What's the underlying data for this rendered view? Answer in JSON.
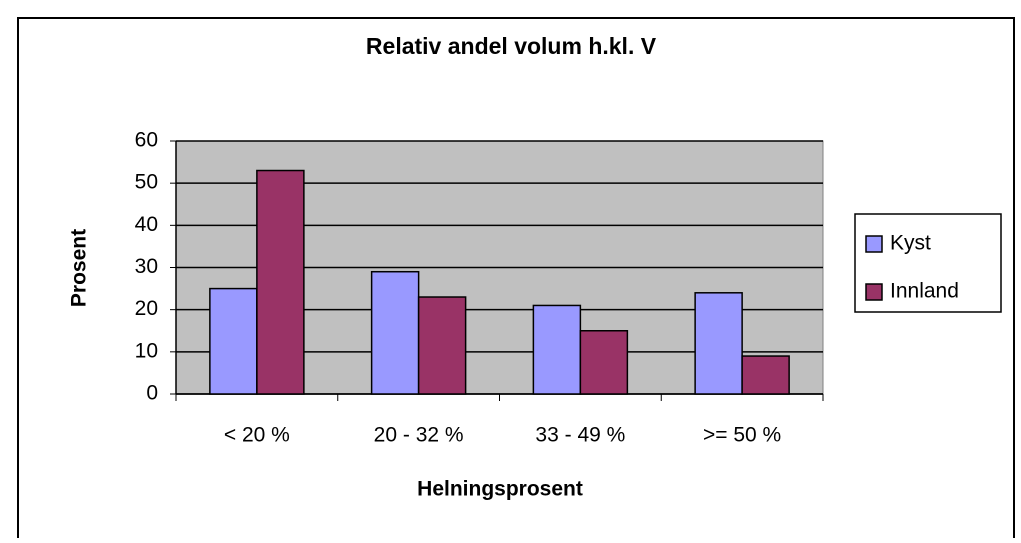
{
  "chart_data": {
    "type": "bar",
    "title": "Relativ andel volum h.kl. V",
    "x_label": "Helningsprosent",
    "y_label": "Prosent",
    "categories": [
      "< 20 %",
      "20 - 32 %",
      "33 - 49 %",
      ">= 50 %"
    ],
    "series": [
      {
        "name": "Kyst",
        "color": "#9999ff",
        "values": [
          25,
          29,
          21,
          24
        ]
      },
      {
        "name": "Innland",
        "color": "#993366",
        "values": [
          53,
          23,
          15,
          9
        ]
      }
    ],
    "ylim": [
      0,
      60
    ],
    "yticks": [
      0,
      10,
      20,
      30,
      40,
      50,
      60
    ],
    "grid": true,
    "legend": "right"
  }
}
